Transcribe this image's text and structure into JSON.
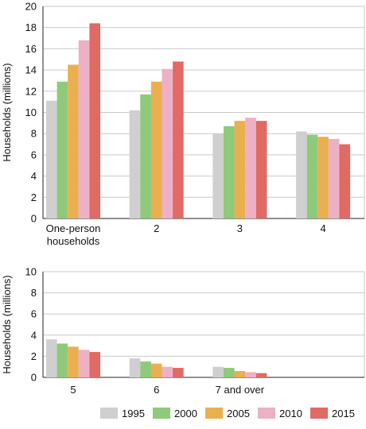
{
  "chart_data": [
    {
      "type": "bar",
      "ylabel": "Households (millions)",
      "ylim": [
        0,
        20
      ],
      "yticks": [
        0,
        2,
        4,
        6,
        8,
        10,
        12,
        14,
        16,
        18,
        20
      ],
      "grid": true,
      "categories": [
        [
          "One-person",
          "households"
        ],
        [
          "2"
        ],
        [
          "3"
        ],
        [
          "4"
        ]
      ],
      "series": [
        {
          "name": "1995",
          "color": "#cfcfcf",
          "values": [
            11.1,
            10.2,
            8.0,
            8.2
          ]
        },
        {
          "name": "2000",
          "color": "#8fc97a",
          "values": [
            12.9,
            11.7,
            8.7,
            7.9
          ]
        },
        {
          "name": "2005",
          "color": "#eab04f",
          "values": [
            14.5,
            12.9,
            9.2,
            7.7
          ]
        },
        {
          "name": "2010",
          "color": "#eeb0c4",
          "values": [
            16.8,
            14.1,
            9.5,
            7.5
          ]
        },
        {
          "name": "2015",
          "color": "#e06a64",
          "values": [
            18.4,
            14.8,
            9.2,
            7.0
          ]
        }
      ]
    },
    {
      "type": "bar",
      "ylabel": "Households (millions)",
      "ylim": [
        0,
        10
      ],
      "yticks": [
        0,
        2,
        4,
        6,
        8,
        10
      ],
      "grid": true,
      "categories": [
        [
          "5"
        ],
        [
          "6"
        ],
        [
          "7 and over"
        ]
      ],
      "series": [
        {
          "name": "1995",
          "color": "#cfcfcf",
          "values": [
            3.6,
            1.8,
            1.0
          ]
        },
        {
          "name": "2000",
          "color": "#8fc97a",
          "values": [
            3.2,
            1.5,
            0.9
          ]
        },
        {
          "name": "2005",
          "color": "#eab04f",
          "values": [
            2.9,
            1.3,
            0.6
          ]
        },
        {
          "name": "2010",
          "color": "#eeb0c4",
          "values": [
            2.6,
            1.0,
            0.5
          ]
        },
        {
          "name": "2015",
          "color": "#e06a64",
          "values": [
            2.4,
            0.9,
            0.4
          ]
        }
      ]
    }
  ],
  "legend": {
    "placement": "bottom-right",
    "items": [
      {
        "label": "1995",
        "color": "#cfcfcf"
      },
      {
        "label": "2000",
        "color": "#8fc97a"
      },
      {
        "label": "2005",
        "color": "#eab04f"
      },
      {
        "label": "2010",
        "color": "#eeb0c4"
      },
      {
        "label": "2015",
        "color": "#e06a64"
      }
    ]
  }
}
